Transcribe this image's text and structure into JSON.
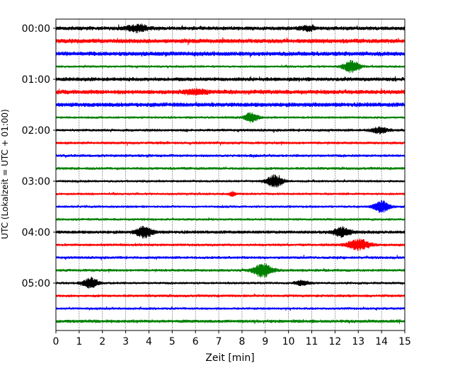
{
  "chart_data": {
    "type": "line",
    "title": "",
    "xlabel": "Zeit  [min]",
    "ylabel": "UTC (Lokalzeit = UTC + 01:00)",
    "xlim": [
      0,
      15
    ],
    "x_ticks": [
      0,
      1,
      2,
      3,
      4,
      5,
      6,
      7,
      8,
      9,
      10,
      11,
      12,
      13,
      14,
      15
    ],
    "x_tick_labels": [
      "0",
      "1",
      "2",
      "3",
      "4",
      "5",
      "6",
      "7",
      "8",
      "9",
      "10",
      "11",
      "12",
      "13",
      "14",
      "15"
    ],
    "y_tick_labels": [
      "00:00",
      "01:00",
      "02:00",
      "03:00",
      "04:00",
      "05:00"
    ],
    "y_tick_trace_index": [
      0,
      4,
      8,
      12,
      16,
      20
    ],
    "grid": "vertical dotted at each minute",
    "trace_interval_minutes": 15,
    "colors": [
      "#000000",
      "#ff0000",
      "#0000ff",
      "#008000"
    ],
    "series": [
      {
        "name": "00:00",
        "color": "#000000",
        "base_amp": 0.35,
        "events": [
          {
            "t": 3.5,
            "amp": 0.55,
            "width": 0.4
          },
          {
            "t": 10.8,
            "amp": 0.3,
            "width": 0.3
          }
        ]
      },
      {
        "name": "00:15",
        "color": "#ff0000",
        "base_amp": 0.4,
        "events": []
      },
      {
        "name": "00:30",
        "color": "#0000ff",
        "base_amp": 0.4,
        "events": []
      },
      {
        "name": "00:45",
        "color": "#008000",
        "base_amp": 0.2,
        "events": [
          {
            "t": 12.7,
            "amp": 0.9,
            "width": 0.35
          }
        ]
      },
      {
        "name": "01:00",
        "color": "#000000",
        "base_amp": 0.35,
        "events": []
      },
      {
        "name": "01:15",
        "color": "#ff0000",
        "base_amp": 0.4,
        "events": [
          {
            "t": 6.0,
            "amp": 0.3,
            "width": 0.5
          }
        ]
      },
      {
        "name": "01:30",
        "color": "#0000ff",
        "base_amp": 0.4,
        "events": []
      },
      {
        "name": "01:45",
        "color": "#008000",
        "base_amp": 0.2,
        "events": [
          {
            "t": 8.4,
            "amp": 0.75,
            "width": 0.3
          }
        ]
      },
      {
        "name": "02:00",
        "color": "#000000",
        "base_amp": 0.25,
        "events": [
          {
            "t": 13.9,
            "amp": 0.45,
            "width": 0.35
          }
        ]
      },
      {
        "name": "02:15",
        "color": "#ff0000",
        "base_amp": 0.25,
        "events": []
      },
      {
        "name": "02:30",
        "color": "#0000ff",
        "base_amp": 0.25,
        "events": []
      },
      {
        "name": "02:45",
        "color": "#008000",
        "base_amp": 0.25,
        "events": []
      },
      {
        "name": "03:00",
        "color": "#000000",
        "base_amp": 0.2,
        "events": [
          {
            "t": 9.4,
            "amp": 0.9,
            "width": 0.35
          }
        ]
      },
      {
        "name": "03:15",
        "color": "#ff0000",
        "base_amp": 0.2,
        "events": [
          {
            "t": 7.6,
            "amp": 0.35,
            "width": 0.15
          }
        ]
      },
      {
        "name": "03:30",
        "color": "#0000ff",
        "base_amp": 0.2,
        "events": [
          {
            "t": 14.0,
            "amp": 0.9,
            "width": 0.35
          }
        ]
      },
      {
        "name": "03:45",
        "color": "#008000",
        "base_amp": 0.22,
        "events": []
      },
      {
        "name": "04:00",
        "color": "#000000",
        "base_amp": 0.3,
        "events": [
          {
            "t": 3.8,
            "amp": 0.8,
            "width": 0.35
          },
          {
            "t": 12.3,
            "amp": 0.7,
            "width": 0.35
          }
        ]
      },
      {
        "name": "04:15",
        "color": "#ff0000",
        "base_amp": 0.25,
        "events": [
          {
            "t": 13.0,
            "amp": 0.8,
            "width": 0.5
          }
        ]
      },
      {
        "name": "04:30",
        "color": "#0000ff",
        "base_amp": 0.25,
        "events": []
      },
      {
        "name": "04:45",
        "color": "#008000",
        "base_amp": 0.25,
        "events": [
          {
            "t": 8.9,
            "amp": 1.0,
            "width": 0.4
          }
        ]
      },
      {
        "name": "05:00",
        "color": "#000000",
        "base_amp": 0.22,
        "events": [
          {
            "t": 1.5,
            "amp": 0.8,
            "width": 0.3
          },
          {
            "t": 10.6,
            "amp": 0.4,
            "width": 0.3
          }
        ]
      },
      {
        "name": "05:15",
        "color": "#ff0000",
        "base_amp": 0.25,
        "events": []
      },
      {
        "name": "05:30",
        "color": "#0000ff",
        "base_amp": 0.22,
        "events": []
      },
      {
        "name": "05:45",
        "color": "#008000",
        "base_amp": 0.3,
        "events": []
      }
    ]
  }
}
